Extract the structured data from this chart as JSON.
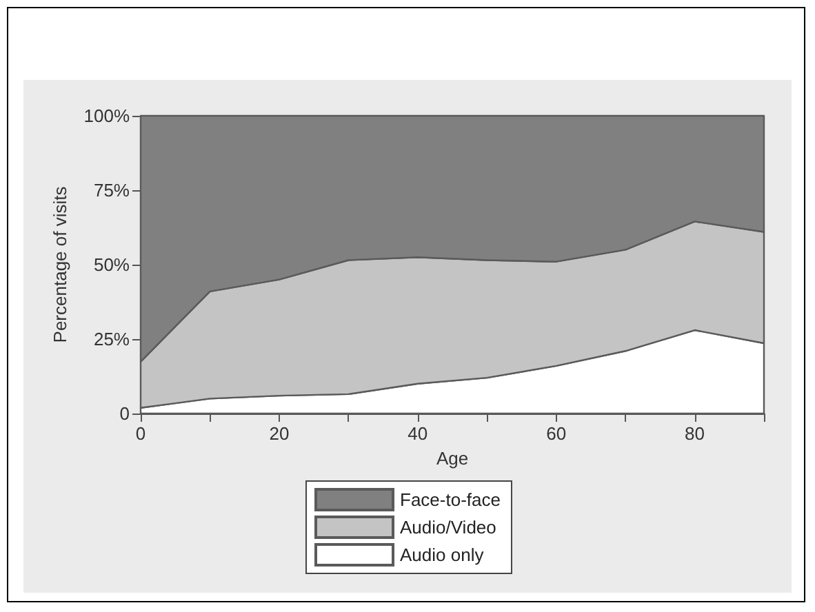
{
  "chart_data": {
    "type": "area",
    "stacked": true,
    "xlabel": "Age",
    "ylabel": "Percentage of visits",
    "x": [
      0,
      10,
      20,
      30,
      40,
      50,
      60,
      70,
      80,
      90
    ],
    "series": [
      {
        "name": "Audio only",
        "color": "#ffffff",
        "values": [
          1.9,
          5,
          6,
          6.5,
          10,
          12,
          16,
          21,
          28,
          23.6
        ]
      },
      {
        "name": "Audio/Video",
        "color": "#c4c4c4",
        "values": [
          15.5,
          36,
          39,
          45,
          42.5,
          39.5,
          35,
          34,
          36.5,
          37.4
        ]
      },
      {
        "name": "Face-to-face",
        "color": "#808080",
        "values": [
          82.6,
          59,
          55,
          48.5,
          47.5,
          48.5,
          49,
          45,
          35.5,
          39
        ]
      }
    ],
    "xlim": [
      0,
      90
    ],
    "xticks": [
      0,
      {
        "value": 10,
        "label": null
      },
      20,
      {
        "value": 30,
        "label": null
      },
      40,
      {
        "value": 50,
        "label": null
      },
      60,
      {
        "value": 70,
        "label": null
      },
      80,
      {
        "value": 90,
        "label": null
      }
    ],
    "ylim": [
      0,
      100
    ],
    "yticks": [
      {
        "value": 0,
        "label": "0"
      },
      {
        "value": 25,
        "label": "25%"
      },
      {
        "value": 50,
        "label": "50%"
      },
      {
        "value": 75,
        "label": "75%"
      },
      {
        "value": 100,
        "label": "100%"
      }
    ],
    "legend": "bottom"
  }
}
